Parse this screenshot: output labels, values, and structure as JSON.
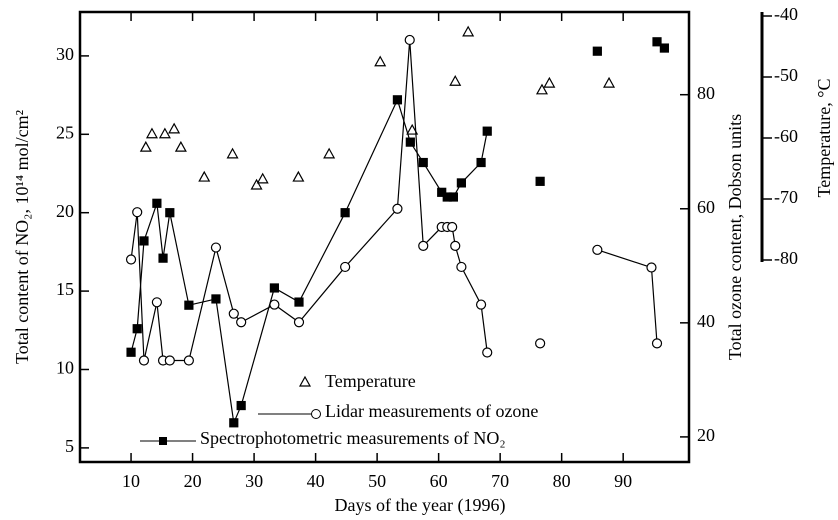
{
  "chart_data": {
    "type": "line",
    "x_label": "Days of the year  (1996)",
    "y_label": "Total content of  NO₂, 10¹⁴ mol/cm²",
    "y2_label": "Total ozone content, Dobson units",
    "y3_label": "Temperature, °C",
    "xlim": [
      1.7,
      100.7
    ],
    "xticks": [
      10,
      20,
      30,
      40,
      50,
      60,
      70,
      80,
      90
    ],
    "ylim": [
      4.1,
      32.8
    ],
    "yticks": [
      5,
      10,
      15,
      20,
      25,
      30
    ],
    "y2lim": [
      15.6,
      94.5
    ],
    "y2ticks": [
      20,
      40,
      60,
      80
    ],
    "y3lim": [
      -80,
      -40
    ],
    "y3ticks": [
      -40,
      -50,
      -60,
      -70,
      -80
    ],
    "series": [
      {
        "name": "Temperature",
        "color": "#000000",
        "marker": "triangle",
        "lines": false,
        "axis": "y3",
        "x": [
          12.4,
          13.4,
          15.5,
          17.0,
          18.1,
          21.9,
          26.5,
          30.4,
          31.4,
          37.2,
          42.2,
          50.5,
          55.7,
          62.7,
          64.8,
          76.8,
          78.0,
          87.7
        ],
        "values": [
          -61.5,
          -59.3,
          -59.3,
          -58.5,
          -61.5,
          -66.4,
          -62.6,
          -67.7,
          -66.7,
          -66.4,
          -62.6,
          -47.5,
          -58.7,
          -50.7,
          -42.6,
          -52.1,
          -51.0,
          -51.0
        ]
      },
      {
        "name": "Lidar measurements of ozone",
        "color": "#000000",
        "marker": "circle",
        "lines": true,
        "axis": "y2",
        "x": [
          10.0,
          11.0,
          12.1,
          14.2,
          15.2,
          16.3,
          19.4,
          23.8,
          26.7,
          27.9,
          33.3,
          37.3,
          44.8,
          53.3,
          55.3,
          57.5,
          60.5,
          61.4,
          62.2,
          62.7,
          63.7,
          66.9,
          67.9,
          null,
          76.5,
          null,
          85.8,
          94.6,
          95.5
        ],
        "values": [
          51.1,
          59.4,
          33.4,
          43.6,
          33.4,
          33.4,
          33.4,
          53.2,
          41.6,
          40.1,
          43.2,
          40.1,
          49.8,
          60.0,
          89.6,
          53.5,
          56.8,
          56.8,
          56.8,
          53.5,
          49.8,
          43.2,
          34.8,
          null,
          36.4,
          null,
          52.8,
          49.7,
          36.4
        ]
      },
      {
        "name": "Spectrophotometric measurements of  NO₂",
        "color": "#000000",
        "marker": "square",
        "lines": true,
        "x": [
          10.0,
          11.0,
          12.1,
          14.2,
          15.2,
          16.3,
          19.4,
          23.8,
          26.7,
          27.9,
          33.3,
          37.3,
          44.8,
          53.3,
          55.4,
          57.5,
          60.5,
          61.4,
          62.4,
          63.7,
          66.9,
          67.9,
          null,
          76.5,
          null,
          85.8,
          null,
          95.5,
          null,
          96.7
        ],
        "values": [
          11.1,
          12.6,
          18.2,
          20.6,
          17.1,
          20.0,
          14.1,
          14.5,
          6.6,
          7.7,
          15.2,
          14.3,
          20.0,
          27.2,
          24.5,
          23.2,
          21.3,
          21.0,
          21.0,
          21.9,
          23.2,
          25.2,
          null,
          22.0,
          null,
          30.3,
          null,
          30.9,
          null,
          30.5
        ]
      }
    ]
  }
}
